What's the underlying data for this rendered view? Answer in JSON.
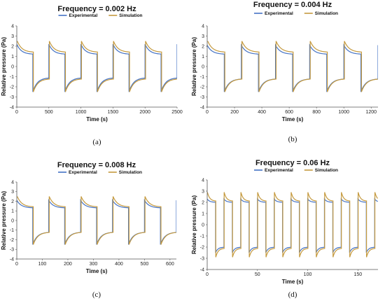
{
  "chart_data": [
    {
      "type": "line",
      "panel": "(a)",
      "title": "Frequency = 0.002 Hz",
      "xlabel": "Time (s)",
      "ylabel": "Relative pressure (Pa)",
      "xlim": [
        0,
        2500
      ],
      "ylim": [
        -4,
        4
      ],
      "xticks": [
        0,
        500,
        1000,
        1500,
        2000,
        2500
      ],
      "yticks": [
        -4,
        -3,
        -2,
        -1,
        0,
        1,
        2,
        3,
        4
      ],
      "period": 500,
      "legend": "top-center",
      "grid": false,
      "series": [
        {
          "name": "Experimental",
          "color": "#4472c4",
          "high_peak": 2.2,
          "high_end": 1.2,
          "low_peak": -2.5,
          "low_end": -1.1,
          "lag": 0
        },
        {
          "name": "Simulation",
          "color": "#c59a3f",
          "high_peak": 2.5,
          "high_end": 1.4,
          "low_peak": -2.5,
          "low_end": -1.2,
          "lag": 8
        }
      ]
    },
    {
      "type": "line",
      "panel": "(b)",
      "title": "Frequency = 0.004 Hz",
      "xlabel": "Time (s)",
      "ylabel": "Relative pressure (Pa)",
      "xlim": [
        0,
        1250
      ],
      "ylim": [
        -4,
        4
      ],
      "xticks": [
        0,
        200,
        400,
        600,
        800,
        1000,
        1200
      ],
      "yticks": [
        -4,
        -3,
        -2,
        -1,
        0,
        1,
        2,
        3,
        4
      ],
      "period": 250,
      "legend": "top-center",
      "grid": false,
      "series": [
        {
          "name": "Experimental",
          "color": "#4472c4",
          "high_peak": 2.1,
          "high_end": 1.2,
          "low_peak": -2.5,
          "low_end": -1.2,
          "lag": 0
        },
        {
          "name": "Simulation",
          "color": "#c59a3f",
          "high_peak": 2.5,
          "high_end": 1.4,
          "low_peak": -2.5,
          "low_end": -1.2,
          "lag": 4
        }
      ]
    },
    {
      "type": "line",
      "panel": "(c)",
      "title": "Frequency = 0.008 Hz",
      "xlabel": "Time (s)",
      "ylabel": "Relative pressure (Pa)",
      "xlim": [
        0,
        625
      ],
      "ylim": [
        -4,
        4
      ],
      "xticks": [
        0,
        100,
        200,
        300,
        400,
        500,
        600
      ],
      "yticks": [
        -4,
        -3,
        -2,
        -1,
        0,
        1,
        2,
        3,
        4
      ],
      "period": 125,
      "legend": "top-center",
      "grid": false,
      "series": [
        {
          "name": "Experimental",
          "color": "#4472c4",
          "high_peak": 2.1,
          "high_end": 1.3,
          "low_peak": -2.5,
          "low_end": -1.2,
          "lag": 0
        },
        {
          "name": "Simulation",
          "color": "#c59a3f",
          "high_peak": 2.5,
          "high_end": 1.4,
          "low_peak": -2.5,
          "low_end": -1.2,
          "lag": 2
        }
      ]
    },
    {
      "type": "line",
      "panel": "(d)",
      "title": "Frequency = 0.06 Hz",
      "xlabel": "Time (s)",
      "ylabel": "Relative pressure (Pa)",
      "xlim": [
        0,
        170
      ],
      "ylim": [
        -4,
        4
      ],
      "xticks": [
        0,
        50,
        100,
        150
      ],
      "yticks": [
        -4,
        -3,
        -2,
        -1,
        0,
        1,
        2,
        3,
        4
      ],
      "period": 16.67,
      "legend": "top-center",
      "grid": false,
      "series": [
        {
          "name": "Experimental",
          "color": "#4472c4",
          "high_peak": 2.3,
          "high_end": 2.0,
          "low_peak": -2.5,
          "low_end": -2.0,
          "lag": 0
        },
        {
          "name": "Simulation",
          "color": "#c59a3f",
          "high_peak": 2.9,
          "high_end": 2.1,
          "low_peak": -2.9,
          "low_end": -2.1,
          "lag": 0.2
        }
      ]
    }
  ]
}
